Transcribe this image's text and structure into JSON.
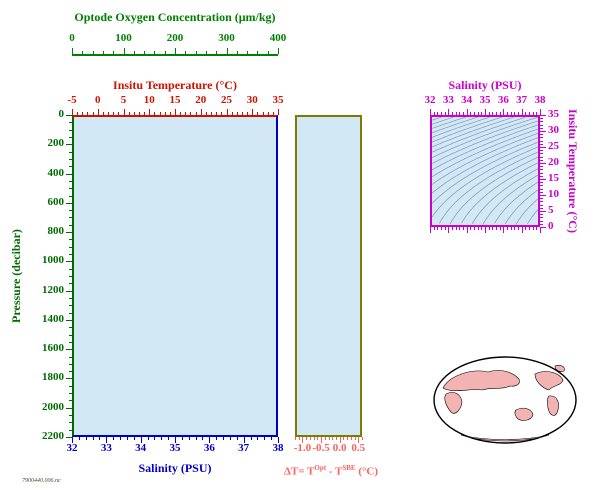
{
  "figure": {
    "footer_stamp": "7900440.006.nc",
    "panel_fill": "#d2e9f5",
    "contour_color": "#7e93bb",
    "map": {
      "land_color": "#f3b3b3",
      "ocean_color": "#ffffff",
      "outline_color": "#000000"
    }
  },
  "chart_data": [
    {
      "id": "profile-panel",
      "type": "line",
      "description": "Vertical profile panel; axes drawn but no data traces plotted",
      "grid": false,
      "y_axis": {
        "label": "Pressure (decibar)",
        "range": [
          0,
          2200
        ],
        "reversed": true,
        "ticks": [
          0,
          200,
          400,
          600,
          800,
          1000,
          1200,
          1400,
          1600,
          1800,
          2000,
          2200
        ],
        "tick_labels": [
          "0",
          "200",
          "400",
          "600",
          "800",
          "1000",
          "1200",
          "1400",
          "1600",
          "1800",
          "2000",
          "2200"
        ],
        "minor_step": 50,
        "color": "#006b00"
      },
      "x_axes": {
        "oxygen": {
          "label": "Optode Oxygen Concentration (μm/kg)",
          "range": [
            0,
            400
          ],
          "ticks": [
            0,
            100,
            200,
            300,
            400
          ],
          "tick_labels": [
            "0",
            "100",
            "200",
            "300",
            "400"
          ],
          "minor_step": 20,
          "color": "#008000",
          "position": "top-detached"
        },
        "temperature": {
          "label": "Insitu Temperature (°C)",
          "range": [
            -5,
            35
          ],
          "ticks": [
            -5,
            0,
            5,
            10,
            15,
            20,
            25,
            30,
            35
          ],
          "tick_labels": [
            "-5",
            "0",
            "5",
            "10",
            "15",
            "20",
            "25",
            "30",
            "35"
          ],
          "minor_step": 1,
          "color": "#cc1100",
          "position": "top"
        },
        "salinity": {
          "label": "Salinity (PSU)",
          "range": [
            32,
            38
          ],
          "ticks": [
            32,
            33,
            34,
            35,
            36,
            37,
            38
          ],
          "tick_labels": [
            "32",
            "33",
            "34",
            "35",
            "36",
            "37",
            "38"
          ],
          "minor_step": 0.2,
          "color": "#0000cc",
          "position": "bottom"
        }
      },
      "series": []
    },
    {
      "id": "delta-panel",
      "type": "line",
      "description": "Temperature difference panel; axes drawn but no data traces plotted",
      "grid": false,
      "x_axis": {
        "label_prefix": "ΔT= T",
        "label_sup1": "Opt",
        "label_mid": " - T",
        "label_sup2": "SBE",
        "label_suffix": " (°C)",
        "range": [
          -1.2,
          0.6
        ],
        "ticks": [
          -1.0,
          -0.5,
          0.0,
          0.5
        ],
        "tick_labels": [
          "-1.0",
          "-0.5",
          "0.0",
          "0.5"
        ],
        "minor_step": 0.1,
        "color": "#ff5e5e",
        "frame_color": "#7c7c00"
      },
      "series": []
    },
    {
      "id": "ts-diagram",
      "type": "line",
      "description": "Temperature-Salinity diagram with isopycnal (sigma-t density) contour lines, no data points plotted",
      "grid": false,
      "x_axis": {
        "label": "Salinity (PSU)",
        "range": [
          32,
          38
        ],
        "ticks": [
          32,
          33,
          34,
          35,
          36,
          37,
          38
        ],
        "tick_labels": [
          "32",
          "33",
          "34",
          "35",
          "36",
          "37",
          "38"
        ],
        "minor_step": 0.2,
        "color": "#cc00cc",
        "position": "top"
      },
      "y_axis": {
        "label": "Insitu Temperature (°C)",
        "range": [
          0,
          35
        ],
        "ticks": [
          0,
          5,
          10,
          15,
          20,
          25,
          30,
          35
        ],
        "tick_labels": [
          "0",
          "5",
          "10",
          "15",
          "20",
          "25",
          "30",
          "35"
        ],
        "minor_step": 1,
        "color": "#cc00cc",
        "position": "right"
      },
      "contours": {
        "quantity": "density (sigma-t) isopycnals",
        "levels": [
          17,
          17.5,
          18,
          18.5,
          19,
          19.5,
          20,
          20.5,
          21,
          21.5,
          22,
          22.5,
          23,
          23.5,
          24,
          24.5,
          25,
          25.5,
          26,
          26.5,
          27,
          27.5,
          28,
          28.5,
          29,
          29.5,
          30,
          30.5,
          31
        ]
      },
      "series": []
    }
  ]
}
